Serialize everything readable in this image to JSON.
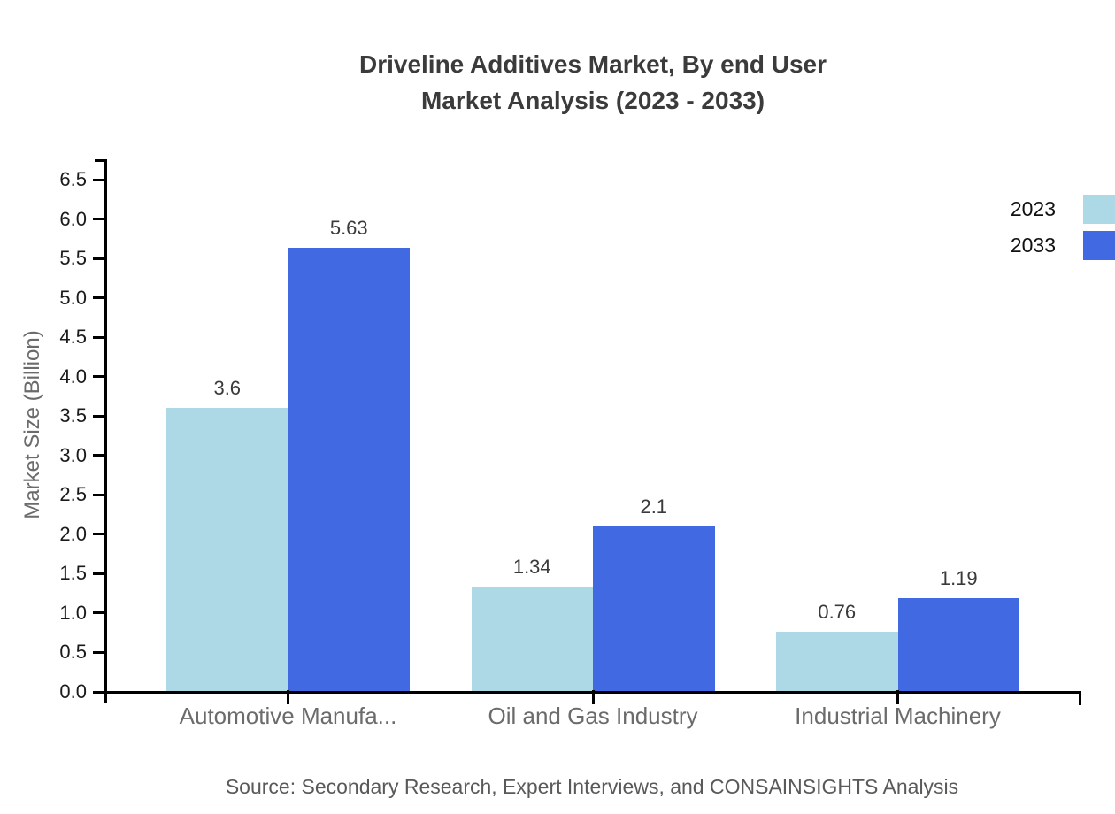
{
  "title": {
    "line1": "Driveline Additives Market, By end User",
    "line2": "Market Analysis (2023 - 2033)"
  },
  "source_note": "Source: Secondary Research, Expert Interviews, and CONSAINSIGHTS Analysis",
  "chart_data": {
    "type": "bar",
    "title": "Driveline Additives Market, By end User Market Analysis (2023 - 2033)",
    "categories": [
      "Automotive Manufa...",
      "Oil and Gas Industry",
      "Industrial Machinery"
    ],
    "series": [
      {
        "name": "2023",
        "color": "#add8e6",
        "values": [
          3.6,
          1.34,
          0.76
        ]
      },
      {
        "name": "2033",
        "color": "#4169e1",
        "values": [
          5.63,
          2.1,
          1.19
        ]
      }
    ],
    "xlabel": "",
    "ylabel": "Market Size (Billion)",
    "ylim": [
      0,
      6.5
    ],
    "ytick_step": 0.5,
    "grid": false,
    "legend_position": "top-right",
    "value_labels_shown": true
  },
  "colors": {
    "background": "#ffffff",
    "axis": "#000000",
    "title_text": "#3b3b3b",
    "tick_label_text": "#1a1a1a",
    "category_text": "#6b6b6b",
    "value_label_text": "#3a3a3a",
    "ylabel_text": "#6b6b6b",
    "source_text": "#595959",
    "series_2023": "#add8e6",
    "series_2033": "#4169e1"
  }
}
